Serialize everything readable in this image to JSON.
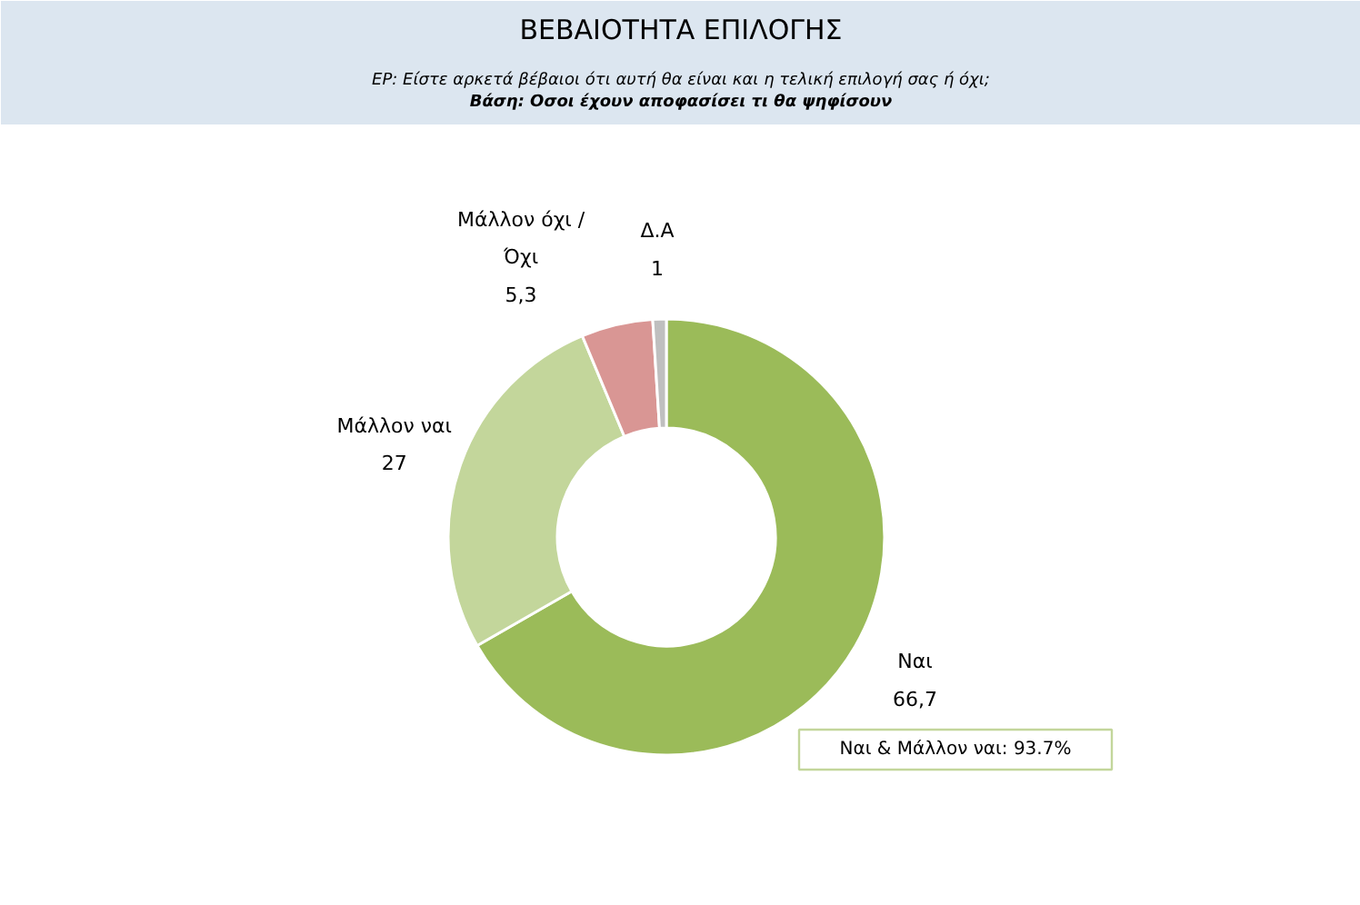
{
  "chart_data": {
    "type": "donut",
    "title": "ΒΕΒΑΙΟΤΗΤΑ ΕΠΙΛΟΓΗΣ",
    "subtitle": "ΕΡ: Είστε αρκετά βέβαιοι ότι αυτή θα είναι και η τελική επιλογή σας ή όχι;",
    "annotations": [
      "Βάση: Οσοι έχουν αποφασίσει τι θα ψηφίσουν",
      "Ναι & Μάλλον ναι: 93.7%"
    ],
    "categories": [
      "Ναι",
      "Μάλλον ναι",
      "Μάλλον όχι /\nΌχι",
      "Δ.Α"
    ],
    "values": [
      66.7,
      27,
      5.3,
      1
    ],
    "value_labels": [
      "66,7",
      "27",
      "5,3",
      "1"
    ],
    "colors": [
      "#9bbb59",
      "#c3d69b",
      "#d99694",
      "#bfbfbf"
    ]
  }
}
